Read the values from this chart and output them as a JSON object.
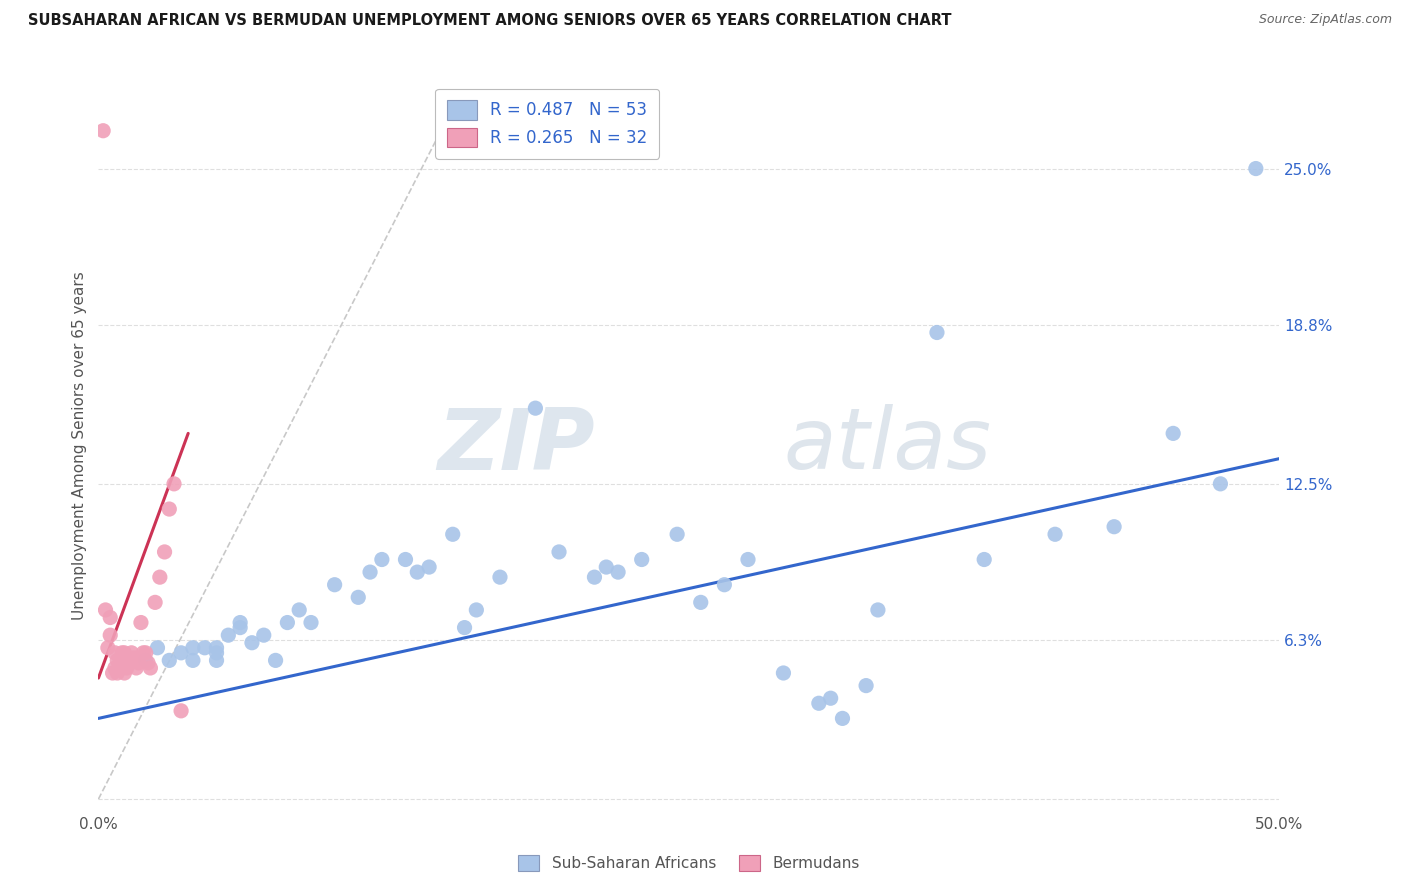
{
  "title": "SUBSAHARAN AFRICAN VS BERMUDAN UNEMPLOYMENT AMONG SENIORS OVER 65 YEARS CORRELATION CHART",
  "source": "Source: ZipAtlas.com",
  "ylabel": "Unemployment Among Seniors over 65 years",
  "xlim": [
    0.0,
    0.5
  ],
  "ylim": [
    -0.005,
    0.285
  ],
  "yticks": [
    0.0,
    0.063,
    0.125,
    0.188,
    0.25
  ],
  "ytick_labels": [
    "",
    "6.3%",
    "12.5%",
    "18.8%",
    "25.0%"
  ],
  "xticks": [
    0.0,
    0.1,
    0.2,
    0.3,
    0.4,
    0.5
  ],
  "xtick_labels": [
    "0.0%",
    "",
    "",
    "",
    "",
    "50.0%"
  ],
  "blue_color": "#a8c4e8",
  "pink_color": "#f0a0b8",
  "blue_line_color": "#3366cc",
  "pink_line_color": "#cc3355",
  "dashed_line_color": "#c8c8c8",
  "legend_r_blue": "R = 0.487",
  "legend_n_blue": "N = 53",
  "legend_r_pink": "R = 0.265",
  "legend_n_pink": "N = 32",
  "legend_label_blue": "Sub-Saharan Africans",
  "legend_label_pink": "Bermudans",
  "watermark_zip": "ZIP",
  "watermark_atlas": "atlas",
  "blue_scatter_x": [
    0.02,
    0.025,
    0.03,
    0.035,
    0.04,
    0.04,
    0.045,
    0.05,
    0.05,
    0.05,
    0.055,
    0.06,
    0.06,
    0.065,
    0.07,
    0.075,
    0.08,
    0.085,
    0.09,
    0.1,
    0.11,
    0.115,
    0.12,
    0.13,
    0.135,
    0.14,
    0.15,
    0.155,
    0.16,
    0.17,
    0.185,
    0.195,
    0.21,
    0.215,
    0.22,
    0.23,
    0.245,
    0.255,
    0.265,
    0.275,
    0.29,
    0.305,
    0.31,
    0.315,
    0.325,
    0.33,
    0.355,
    0.375,
    0.405,
    0.43,
    0.455,
    0.475,
    0.49
  ],
  "blue_scatter_y": [
    0.055,
    0.06,
    0.055,
    0.058,
    0.055,
    0.06,
    0.06,
    0.055,
    0.058,
    0.06,
    0.065,
    0.068,
    0.07,
    0.062,
    0.065,
    0.055,
    0.07,
    0.075,
    0.07,
    0.085,
    0.08,
    0.09,
    0.095,
    0.095,
    0.09,
    0.092,
    0.105,
    0.068,
    0.075,
    0.088,
    0.155,
    0.098,
    0.088,
    0.092,
    0.09,
    0.095,
    0.105,
    0.078,
    0.085,
    0.095,
    0.05,
    0.038,
    0.04,
    0.032,
    0.045,
    0.075,
    0.185,
    0.095,
    0.105,
    0.108,
    0.145,
    0.125,
    0.25
  ],
  "pink_scatter_x": [
    0.002,
    0.003,
    0.004,
    0.005,
    0.005,
    0.006,
    0.007,
    0.007,
    0.008,
    0.008,
    0.009,
    0.01,
    0.01,
    0.011,
    0.011,
    0.012,
    0.013,
    0.014,
    0.015,
    0.016,
    0.017,
    0.018,
    0.019,
    0.02,
    0.021,
    0.022,
    0.024,
    0.026,
    0.028,
    0.03,
    0.032,
    0.035
  ],
  "pink_scatter_y": [
    0.265,
    0.075,
    0.06,
    0.065,
    0.072,
    0.05,
    0.058,
    0.052,
    0.05,
    0.055,
    0.054,
    0.052,
    0.058,
    0.05,
    0.058,
    0.052,
    0.054,
    0.058,
    0.056,
    0.052,
    0.054,
    0.07,
    0.058,
    0.058,
    0.054,
    0.052,
    0.078,
    0.088,
    0.098,
    0.115,
    0.125,
    0.035
  ],
  "blue_trendline_x": [
    0.0,
    0.5
  ],
  "blue_trendline_y": [
    0.032,
    0.135
  ],
  "pink_trendline_x": [
    0.0,
    0.038
  ],
  "pink_trendline_y": [
    0.048,
    0.145
  ],
  "dashed_line_x": [
    0.0,
    0.145
  ],
  "dashed_line_y": [
    0.0,
    0.265
  ],
  "background_color": "#ffffff",
  "grid_color": "#d8d8d8"
}
